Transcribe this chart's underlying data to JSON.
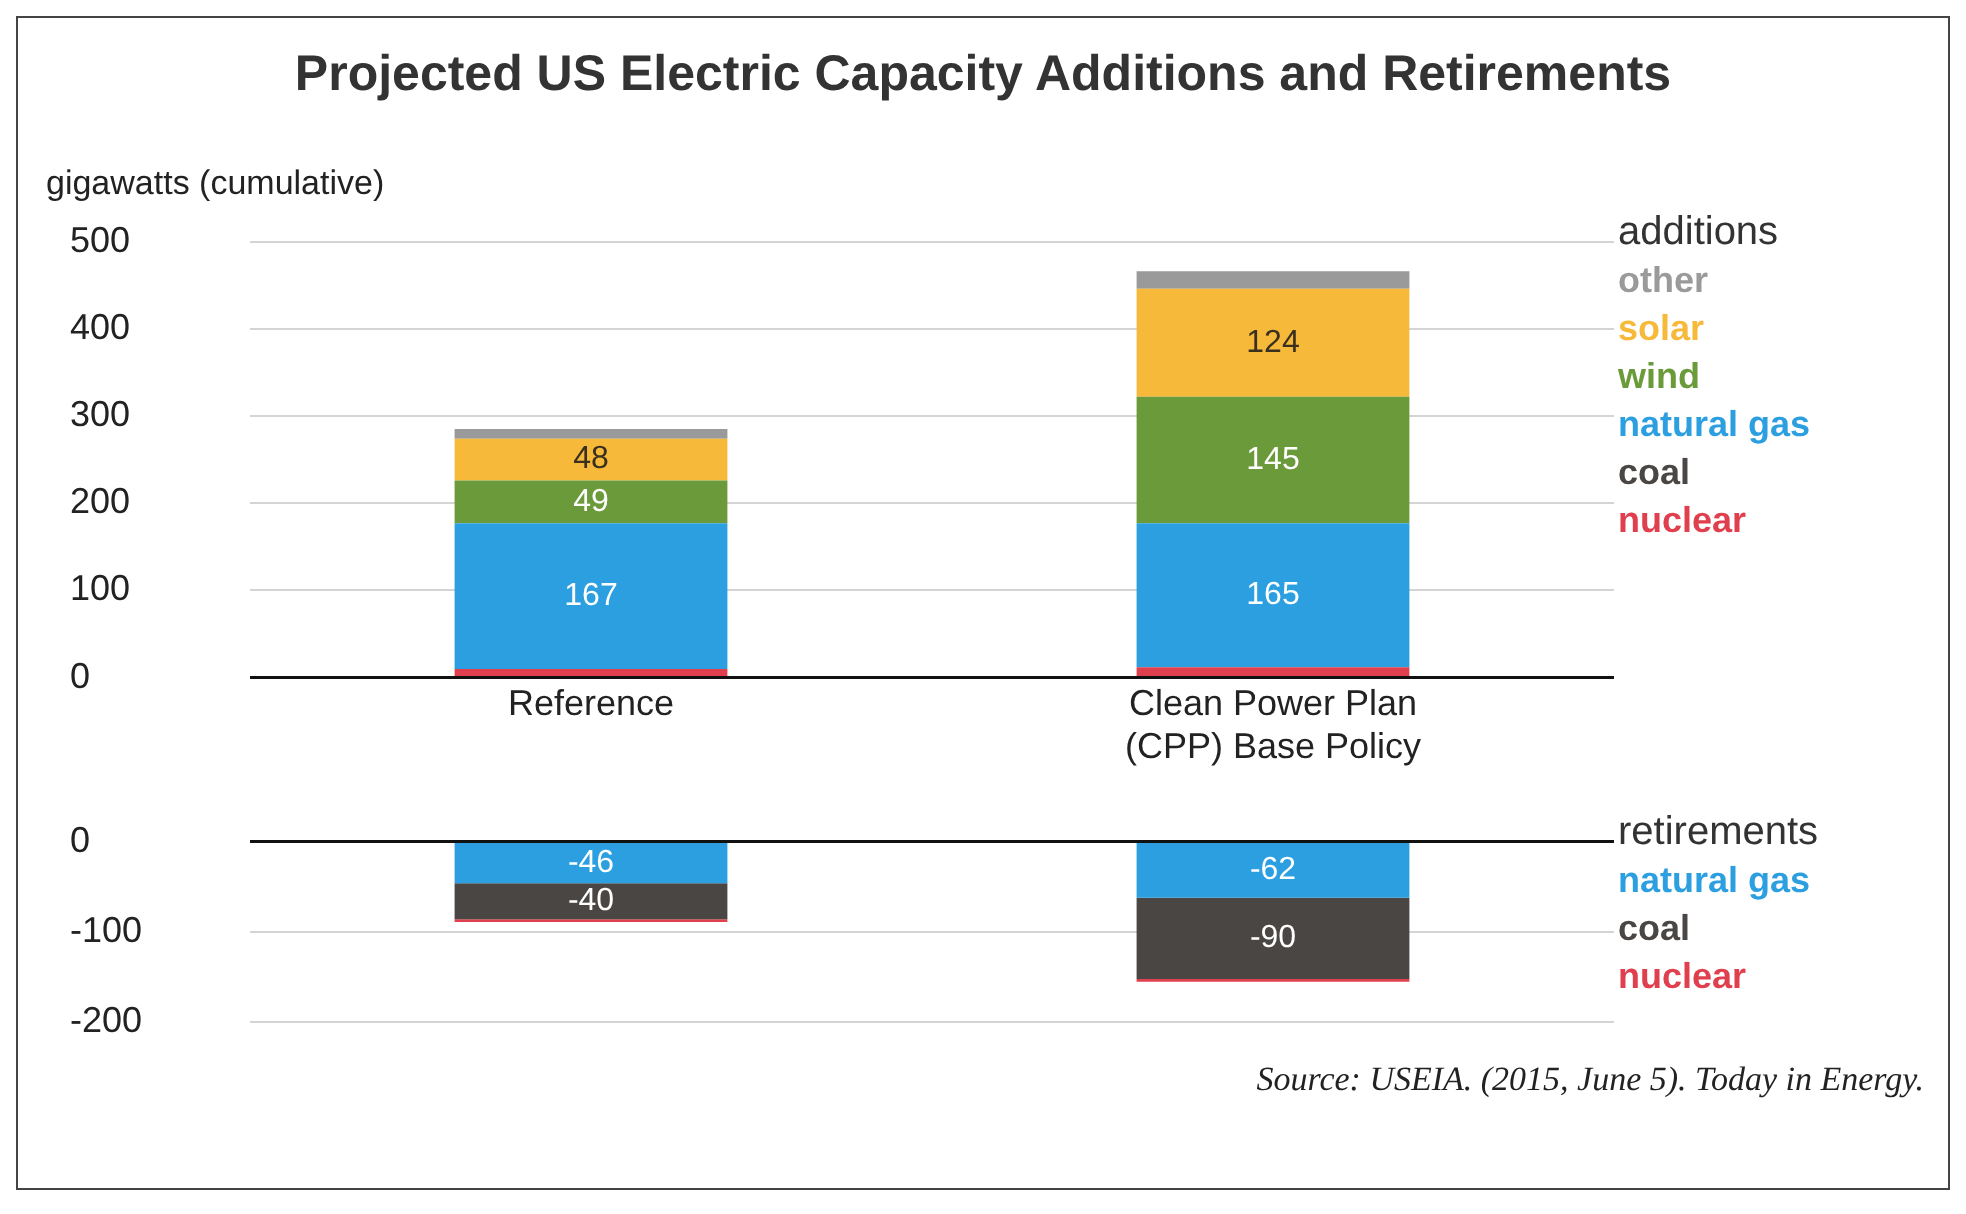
{
  "chart_data": [
    {
      "type": "bar",
      "title": "Projected US Electric Capacity Additions and Retirements",
      "ylabel": "gigawatts (cumulative)",
      "categories": [
        "Reference",
        "Clean Power Plan (CPP) Base Policy"
      ],
      "stacked": true,
      "ylim": [
        0,
        500
      ],
      "yticks": [
        0,
        100,
        200,
        300,
        400,
        500
      ],
      "grid": "y",
      "legend": "right",
      "legend_title": "additions",
      "series": [
        {
          "name": "nuclear",
          "color": "#e0404e",
          "values": [
            10,
            12
          ]
        },
        {
          "name": "coal",
          "color": "#4a4644",
          "values": [
            0,
            0
          ]
        },
        {
          "name": "natural gas",
          "color": "#2b9fe0",
          "values": [
            167,
            165
          ],
          "value_labels": [
            "167",
            "165"
          ]
        },
        {
          "name": "wind",
          "color": "#6a9a3a",
          "values": [
            49,
            145
          ],
          "value_labels": [
            "49",
            "145"
          ]
        },
        {
          "name": "solar",
          "color": "#f7b93a",
          "values": [
            48,
            124
          ],
          "value_labels": [
            "48",
            "124"
          ]
        },
        {
          "name": "other",
          "color": "#9a9a9a",
          "values": [
            11,
            20
          ]
        }
      ]
    },
    {
      "type": "bar",
      "categories": [
        null,
        null
      ],
      "stacked": true,
      "ylim": [
        -200,
        0
      ],
      "yticks": [
        -200,
        -100,
        0
      ],
      "grid": "y",
      "legend": "right",
      "legend_title": "retirements",
      "tick_labels": "y",
      "annotations": [
        "Source: USEIA. (2015, June 5). Today in Energy."
      ],
      "series": [
        {
          "name": "natural gas",
          "color": "#2b9fe0",
          "values": [
            -46,
            -62
          ],
          "value_labels": [
            "-46",
            "-62"
          ]
        },
        {
          "name": "coal",
          "color": "#4a4644",
          "values": [
            -40,
            -90
          ],
          "value_labels": [
            "-40",
            "-90"
          ]
        },
        {
          "name": "nuclear",
          "color": "#e0404e",
          "values": [
            -3,
            -3
          ]
        }
      ]
    }
  ]
}
